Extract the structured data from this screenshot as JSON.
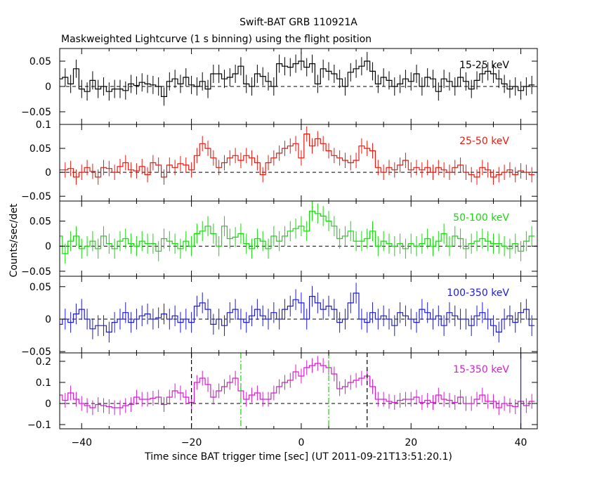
{
  "title": "Swift-BAT GRB 110921A",
  "subtitle": "Maskweighted Lightcurve (1 s binning) using the flight position",
  "xlabel": "Time since BAT trigger time [sec] (UT 2011-09-21T13:51:20.1)",
  "ylabel": "Counts/sec/det",
  "chart_data": {
    "type": "line",
    "title": "Swift-BAT GRB 110921A",
    "subtitle": "Maskweighted Lightcurve (1 s binning) using the flight position",
    "xlabel": "Time since BAT trigger time [sec] (UT 2011-09-21T13:51:20.1)",
    "ylabel": "Counts/sec/det",
    "xlim": [
      -44,
      43
    ],
    "xticks": [
      -40,
      -20,
      0,
      20,
      40
    ],
    "x": [
      -44,
      -43,
      -42,
      -41,
      -40,
      -39,
      -38,
      -37,
      -36,
      -35,
      -34,
      -33,
      -32,
      -31,
      -30,
      -29,
      -28,
      -27,
      -26,
      -25,
      -24,
      -23,
      -22,
      -21,
      -20,
      -19,
      -18,
      -17,
      -16,
      -15,
      -14,
      -13,
      -12,
      -11,
      -10,
      -9,
      -8,
      -7,
      -6,
      -5,
      -4,
      -3,
      -2,
      -1,
      0,
      1,
      2,
      3,
      4,
      5,
      6,
      7,
      8,
      9,
      10,
      11,
      12,
      13,
      14,
      15,
      16,
      17,
      18,
      19,
      20,
      21,
      22,
      23,
      24,
      25,
      26,
      27,
      28,
      29,
      30,
      31,
      32,
      33,
      34,
      35,
      36,
      37,
      38,
      39,
      40,
      41,
      42
    ],
    "series": [
      {
        "name": "15-25 keV",
        "color": "#000000",
        "ylim": [
          -0.075,
          0.075
        ],
        "yticks": [
          -0.05,
          0,
          0.05
        ],
        "errors": 0.018,
        "values": [
          0.015,
          0.018,
          0.005,
          0.035,
          -0.005,
          -0.01,
          0.012,
          -0.005,
          0.0,
          -0.01,
          -0.005,
          -0.005,
          -0.008,
          0.005,
          0.002,
          0.008,
          0.005,
          0.003,
          0.0,
          -0.02,
          0.01,
          0.015,
          0.005,
          0.018,
          0.003,
          0.0,
          0.01,
          -0.005,
          0.025,
          0.025,
          0.015,
          0.018,
          0.025,
          0.04,
          0.005,
          0.0,
          0.025,
          0.02,
          0.01,
          0.0,
          0.045,
          0.04,
          0.038,
          0.045,
          0.05,
          0.038,
          0.045,
          0.005,
          0.035,
          0.03,
          0.025,
          0.015,
          0.0,
          0.028,
          0.035,
          0.04,
          0.05,
          0.03,
          0.005,
          0.018,
          0.012,
          0.0,
          0.005,
          0.015,
          0.01,
          0.025,
          0.0,
          0.018,
          0.015,
          -0.01,
          0.015,
          0.01,
          0.0,
          0.018,
          0.01,
          -0.005,
          0.012,
          0.025,
          0.03,
          0.025,
          0.015,
          0.005,
          -0.005,
          0.0,
          -0.008,
          0.0,
          0.003
        ]
      },
      {
        "name": "25-50 keV",
        "color": "#e8190f",
        "ylim": [
          -0.06,
          0.1
        ],
        "yticks": [
          -0.05,
          0,
          0.05,
          0.1
        ],
        "errors": 0.016,
        "values": [
          0.005,
          0.005,
          0.008,
          -0.01,
          0.0,
          0.01,
          0.002,
          -0.01,
          0.01,
          0.008,
          0.0,
          0.012,
          0.02,
          0.005,
          0.003,
          0.012,
          -0.005,
          0.02,
          0.015,
          -0.01,
          0.015,
          0.01,
          0.018,
          0.015,
          0.005,
          0.035,
          0.06,
          0.05,
          0.03,
          0.01,
          0.02,
          0.03,
          0.035,
          0.025,
          0.035,
          0.03,
          0.02,
          -0.005,
          0.02,
          0.03,
          0.04,
          0.05,
          0.055,
          0.06,
          0.03,
          0.08,
          0.055,
          0.07,
          0.06,
          0.045,
          0.035,
          0.03,
          0.025,
          0.02,
          0.025,
          0.055,
          0.05,
          0.045,
          0.01,
          0.0,
          0.01,
          0.005,
          0.015,
          0.025,
          0.005,
          0.01,
          0.005,
          0.01,
          0.0,
          0.01,
          0.005,
          0.0,
          0.01,
          0.015,
          0.0,
          -0.005,
          -0.01,
          0.01,
          0.005,
          -0.01,
          -0.005,
          0.0,
          0.005,
          -0.005,
          0.003,
          0.0,
          -0.005
        ]
      },
      {
        "name": "50-100 keV",
        "color": "#16d80d",
        "ylim": [
          -0.06,
          0.09
        ],
        "yticks": [
          -0.05,
          0,
          0.05
        ],
        "errors": 0.02,
        "values": [
          0.02,
          -0.015,
          0.01,
          0.02,
          -0.005,
          0.0,
          0.01,
          -0.005,
          0.02,
          0.005,
          -0.005,
          0.01,
          0.015,
          0.005,
          0.0,
          0.01,
          0.005,
          0.005,
          -0.01,
          0.015,
          0.01,
          0.005,
          -0.005,
          0.01,
          0.0,
          0.025,
          0.03,
          0.04,
          0.025,
          0.0,
          0.04,
          0.015,
          0.018,
          0.025,
          0.005,
          -0.005,
          0.015,
          0.01,
          -0.005,
          0.02,
          0.01,
          0.02,
          0.03,
          0.035,
          0.04,
          0.03,
          0.07,
          0.065,
          0.06,
          0.05,
          0.04,
          0.015,
          0.02,
          0.03,
          0.01,
          0.01,
          0.015,
          0.03,
          0.0,
          0.01,
          0.005,
          0.0,
          0.005,
          -0.005,
          0.005,
          0.0,
          0.005,
          0.015,
          0.0,
          0.01,
          0.025,
          0.0,
          0.02,
          0.015,
          -0.005,
          0.005,
          0.01,
          0.015,
          0.01,
          0.005,
          0.005,
          0.0,
          -0.005,
          0.005,
          -0.01,
          0.01,
          0.02
        ]
      },
      {
        "name": "100-350 keV",
        "color": "#1d1bd4",
        "ylim": [
          -0.052,
          0.066
        ],
        "yticks": [
          -0.05,
          0,
          0.05
        ],
        "errors": 0.016,
        "values": [
          -0.008,
          0.0,
          -0.005,
          0.008,
          0.015,
          0.0,
          -0.015,
          -0.01,
          -0.01,
          -0.02,
          -0.005,
          0.0,
          0.01,
          -0.005,
          0.0,
          0.005,
          0.008,
          0.0,
          0.002,
          0.008,
          0.0,
          0.005,
          -0.005,
          0.0,
          -0.005,
          0.02,
          0.025,
          0.015,
          -0.008,
          0.0,
          -0.01,
          0.01,
          0.015,
          0.0,
          -0.005,
          0.005,
          0.015,
          0.005,
          0.0,
          0.01,
          0.0,
          0.015,
          0.02,
          0.03,
          0.025,
          0.0,
          0.035,
          0.025,
          0.015,
          0.02,
          0.015,
          -0.005,
          0.0,
          0.025,
          0.04,
          0.0,
          -0.005,
          0.01,
          0.0,
          0.005,
          0.0,
          -0.01,
          0.01,
          0.005,
          0.0,
          -0.005,
          0.015,
          0.01,
          0.0,
          0.005,
          -0.01,
          0.01,
          0.005,
          0.0,
          0.0,
          -0.01,
          0.005,
          0.01,
          0.0,
          -0.01,
          -0.02,
          0.0,
          0.005,
          -0.005,
          0.01,
          0.015,
          -0.01
        ]
      },
      {
        "name": "15-350 keV",
        "color": "#d61bcf",
        "ylim": [
          -0.12,
          0.24
        ],
        "yticks": [
          -0.1,
          0,
          0.1,
          0.2
        ],
        "errors": 0.035,
        "values": [
          0.04,
          0.015,
          0.05,
          0.02,
          0.0,
          -0.01,
          -0.02,
          -0.005,
          -0.01,
          -0.015,
          -0.02,
          -0.02,
          -0.01,
          -0.005,
          0.03,
          0.02,
          0.02,
          0.025,
          0.03,
          -0.005,
          0.03,
          0.06,
          0.05,
          0.03,
          0.005,
          0.1,
          0.12,
          0.09,
          0.03,
          0.06,
          0.08,
          0.1,
          0.12,
          0.06,
          0.02,
          0.04,
          0.05,
          0.02,
          0.02,
          0.05,
          0.08,
          0.1,
          0.11,
          0.15,
          0.13,
          0.17,
          0.18,
          0.19,
          0.18,
          0.17,
          0.14,
          0.07,
          0.08,
          0.1,
          0.11,
          0.12,
          0.13,
          0.08,
          0.02,
          0.02,
          0.01,
          0.005,
          0.015,
          0.02,
          0.02,
          0.03,
          0.005,
          0.015,
          0.005,
          0.04,
          0.02,
          0.015,
          0.005,
          0.03,
          0.0,
          0.0,
          0.02,
          0.04,
          0.01,
          0.01,
          -0.02,
          0.0,
          -0.01,
          -0.015,
          0.01,
          -0.01,
          0.01
        ]
      }
    ],
    "markers": [
      {
        "x": -20,
        "style": "dashed",
        "color": "#000000"
      },
      {
        "x": -11,
        "style": "dash-dot",
        "color": "#16d80d"
      },
      {
        "x": 5,
        "style": "dash-dot",
        "color": "#16d80d"
      },
      {
        "x": 12,
        "style": "dashed",
        "color": "#000000"
      },
      {
        "x": 40,
        "style": "solid",
        "color": "#1d1bd4"
      }
    ]
  }
}
